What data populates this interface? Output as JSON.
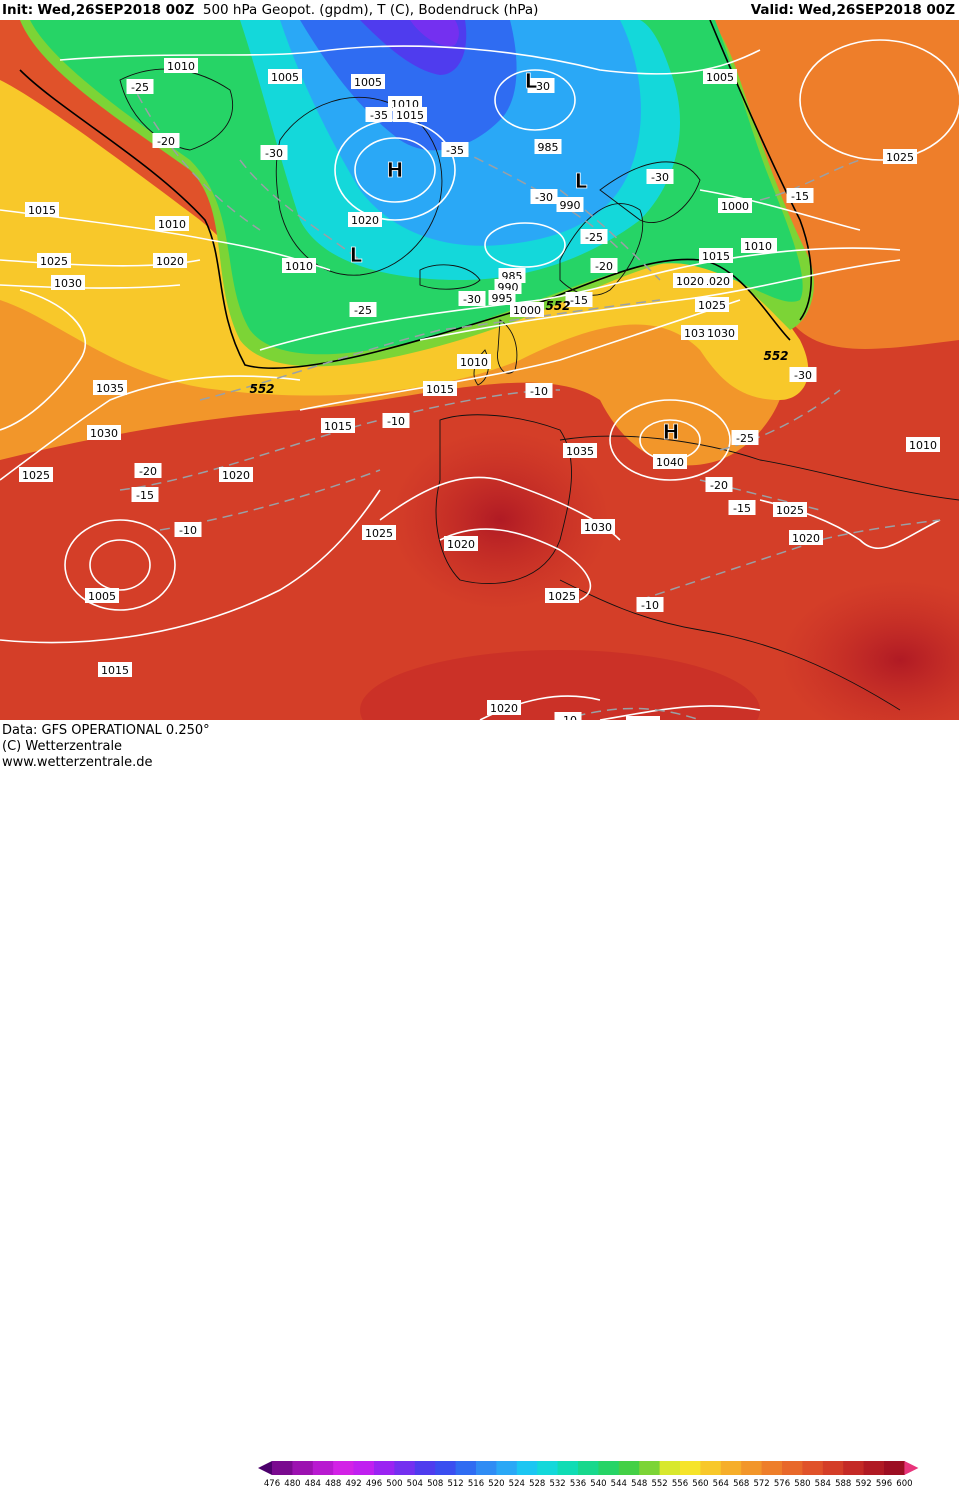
{
  "header": {
    "init_label": "Init:",
    "init_value": "Wed,26SEP2018 00Z",
    "title": "500 hPa Geopot. (gpdm), T (C), Bodendruck (hPa)",
    "valid_label": "Valid:",
    "valid_value": "Wed,26SEP2018 00Z"
  },
  "footer": {
    "data_line": "Data: GFS OPERATIONAL 0.250°",
    "copyright": "(C) Wetterzentrale",
    "url": "www.wetterzentrale.de"
  },
  "legend": {
    "ticks": [
      "476",
      "480",
      "484",
      "488",
      "492",
      "496",
      "500",
      "504",
      "508",
      "512",
      "516",
      "520",
      "524",
      "528",
      "532",
      "536",
      "540",
      "544",
      "548",
      "552",
      "556",
      "560",
      "564",
      "568",
      "572",
      "576",
      "580",
      "584",
      "588",
      "592",
      "596",
      "600"
    ],
    "colors": [
      "#4b006b",
      "#7a0a8f",
      "#9c12b0",
      "#b81ad0",
      "#d222e6",
      "#c020f0",
      "#9a24f2",
      "#7430f0",
      "#4f3cee",
      "#3a4ef0",
      "#2f6cf2",
      "#2f8cf4",
      "#2aa8f6",
      "#1cc6f2",
      "#14d8da",
      "#10dcb4",
      "#18d88c",
      "#26d466",
      "#44d046",
      "#7cd436",
      "#d8e82e",
      "#f6e42a",
      "#f8c82a",
      "#f6ae2a",
      "#f2962a",
      "#ee7e2a",
      "#e8682a",
      "#e0522a",
      "#d43e28",
      "#c42a26",
      "#b01a24",
      "#9c0e22",
      "#e8347a"
    ]
  },
  "map": {
    "isobar_labels": [
      "1010",
      "1005",
      "1005",
      "1010",
      "1015",
      "1020",
      "985",
      "990",
      "985",
      "990",
      "995",
      "1000",
      "1000",
      "1010",
      "1015",
      "1020",
      "1025",
      "1030",
      "1020",
      "1025",
      "1030",
      "1035",
      "1030",
      "1025",
      "1020",
      "1010",
      "1015",
      "1010",
      "1015",
      "1005",
      "1010",
      "1015",
      "1035",
      "1040",
      "1030",
      "1025",
      "1020",
      "1025",
      "1020",
      "1015",
      "1010",
      "1005",
      "1015",
      "1020",
      "1025",
      "1025",
      "1030",
      "1020",
      "1010",
      "1005"
    ],
    "temp_labels": [
      "-25",
      "-20",
      "-30",
      "-35",
      "-35",
      "-30",
      "-30",
      "-30",
      "-25",
      "-20",
      "-15",
      "-10",
      "-10",
      "-20",
      "-15",
      "-10",
      "-25",
      "-30",
      "-20",
      "-15",
      "-10",
      "-10",
      "-10",
      "-25",
      "-15",
      "-30"
    ],
    "pressure_centers": [
      "H",
      "L",
      "L",
      "L",
      "H"
    ],
    "contour_552": [
      "552",
      "552",
      "552"
    ]
  }
}
